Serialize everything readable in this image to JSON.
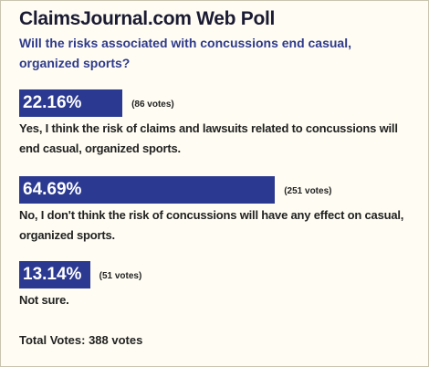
{
  "chart_data": {
    "type": "bar",
    "title": "ClaimsJournal.com Web Poll",
    "subtitle": "Will the risks associated with concussions end casual, organized sports?",
    "categories": [
      "Yes, I think the risk of claims and lawsuits related to concussions will end casual, organized sports.",
      "No, I don't think the risk of concussions will have any effect on casual, organized sports.",
      "Not sure."
    ],
    "values": [
      22.16,
      64.69,
      13.14
    ],
    "value_labels": [
      "22.16%",
      "64.69%",
      "13.14%"
    ],
    "votes": [
      86,
      251,
      51
    ],
    "vote_labels": [
      "(86 votes)",
      "(251 votes)",
      "(51 votes)"
    ],
    "color": "#2b3990",
    "total": "Total Votes: 388 votes"
  }
}
